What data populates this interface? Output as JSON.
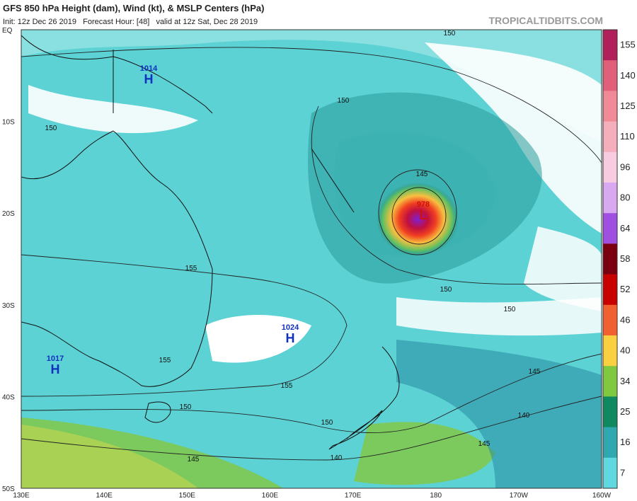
{
  "header": {
    "title": "GFS 850 hPa Height (dam), Wind (kt), & MSLP Centers (hPa)",
    "subtitle": "Init: 12z Dec 26 2019   Forecast Hour: [48]   valid at 12z Sat, Dec 28 2019",
    "source": "TROPICALTIDBITS.COM"
  },
  "map": {
    "lat_labels": [
      "EQ",
      "10S",
      "20S",
      "30S",
      "40S",
      "50S"
    ],
    "lon_labels": [
      "130E",
      "140E",
      "150E",
      "160E",
      "170E",
      "180",
      "170W",
      "160W"
    ],
    "pressure_centers": [
      {
        "value": "1014",
        "symbol": "H"
      },
      {
        "value": "1024",
        "symbol": "H"
      },
      {
        "value": "1017",
        "symbol": "H"
      },
      {
        "value": "978",
        "symbol": "L"
      }
    ],
    "contour_labels": [
      "150",
      "150",
      "150",
      "150",
      "155",
      "155",
      "155",
      "150",
      "150",
      "150",
      "145",
      "145",
      "140",
      "140",
      "145",
      "145"
    ]
  },
  "colorbar": {
    "labels": [
      "155",
      "140",
      "125",
      "110",
      "96",
      "80",
      "64",
      "58",
      "52",
      "46",
      "40",
      "34",
      "25",
      "16",
      "7"
    ],
    "colors": [
      "#b0205a",
      "#e0607a",
      "#f08a96",
      "#f4aebc",
      "#f8cce0",
      "#d8a8f0",
      "#a050e0",
      "#7a0010",
      "#c80000",
      "#f06030",
      "#f8d040",
      "#80c840",
      "#108860",
      "#30a8b0",
      "#60d8e0"
    ]
  }
}
